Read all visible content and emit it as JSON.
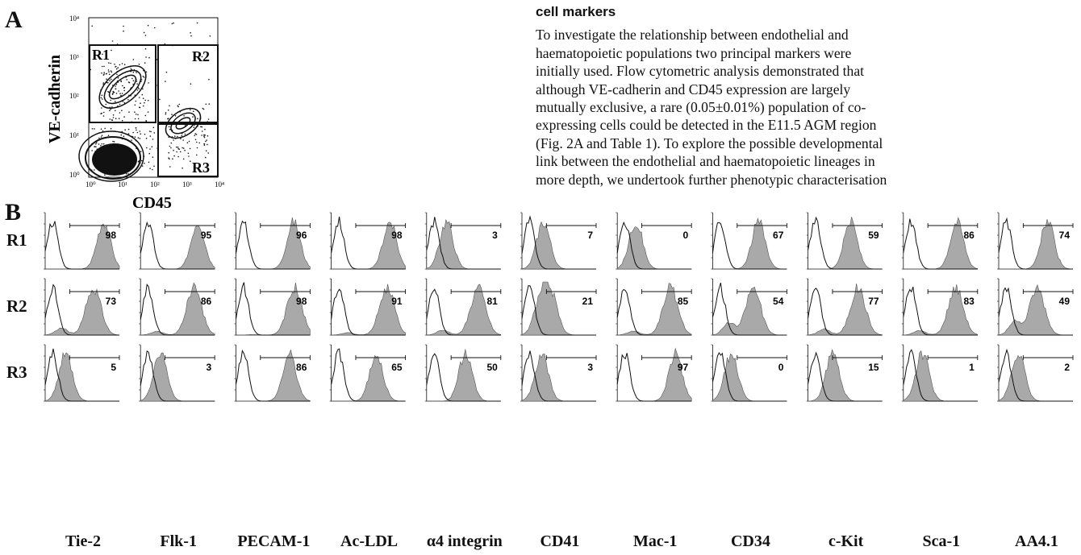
{
  "panel_a": {
    "letter": "A",
    "y_axis_label": "VE-cadherin",
    "x_axis_label": "CD45",
    "y_ticks": [
      "10⁰",
      "10¹",
      "10²",
      "10³",
      "10⁴"
    ],
    "x_ticks": [
      "10⁰",
      "10¹",
      "10²",
      "10³",
      "10⁴"
    ],
    "gates": [
      "R1",
      "R2",
      "R3"
    ]
  },
  "section_heading": "cell markers",
  "paragraph_lines": [
    "To investigate the relationship between endothelial and",
    "haematopoietic populations two principal markers were",
    "initially used. Flow cytometric analysis demonstrated that",
    "although VE-cadherin and CD45 expression are largely",
    "mutually exclusive, a rare (0.05±0.01%) population of co-",
    "expressing cells could be detected in the E11.5 AGM region",
    "(Fig. 2A and Table 1). To explore the possible developmental",
    "link between the endothelial and haematopoietic lineages in",
    "more depth, we undertook further phenotypic characterisation"
  ],
  "panel_b": {
    "letter": "B",
    "rows": [
      "R1",
      "R2",
      "R3"
    ],
    "columns": [
      "Tie-2",
      "Flk-1",
      "PECAM-1",
      "Ac-LDL",
      "α4 integrin",
      "CD41",
      "Mac-1",
      "CD34",
      "c-Kit",
      "Sca-1",
      "AA4.1"
    ],
    "percentages": [
      [
        "98",
        "95",
        "96",
        "98",
        "3",
        "7",
        "0",
        "67",
        "59",
        "86",
        "74"
      ],
      [
        "73",
        "86",
        "98",
        "91",
        "81",
        "21",
        "85",
        "54",
        "77",
        "83",
        "49"
      ],
      [
        "5",
        "3",
        "86",
        "65",
        "50",
        "3",
        "97",
        "0",
        "15",
        "1",
        "2"
      ]
    ]
  },
  "colors": {
    "fill": "#a9a9a9",
    "line": "#111111"
  }
}
